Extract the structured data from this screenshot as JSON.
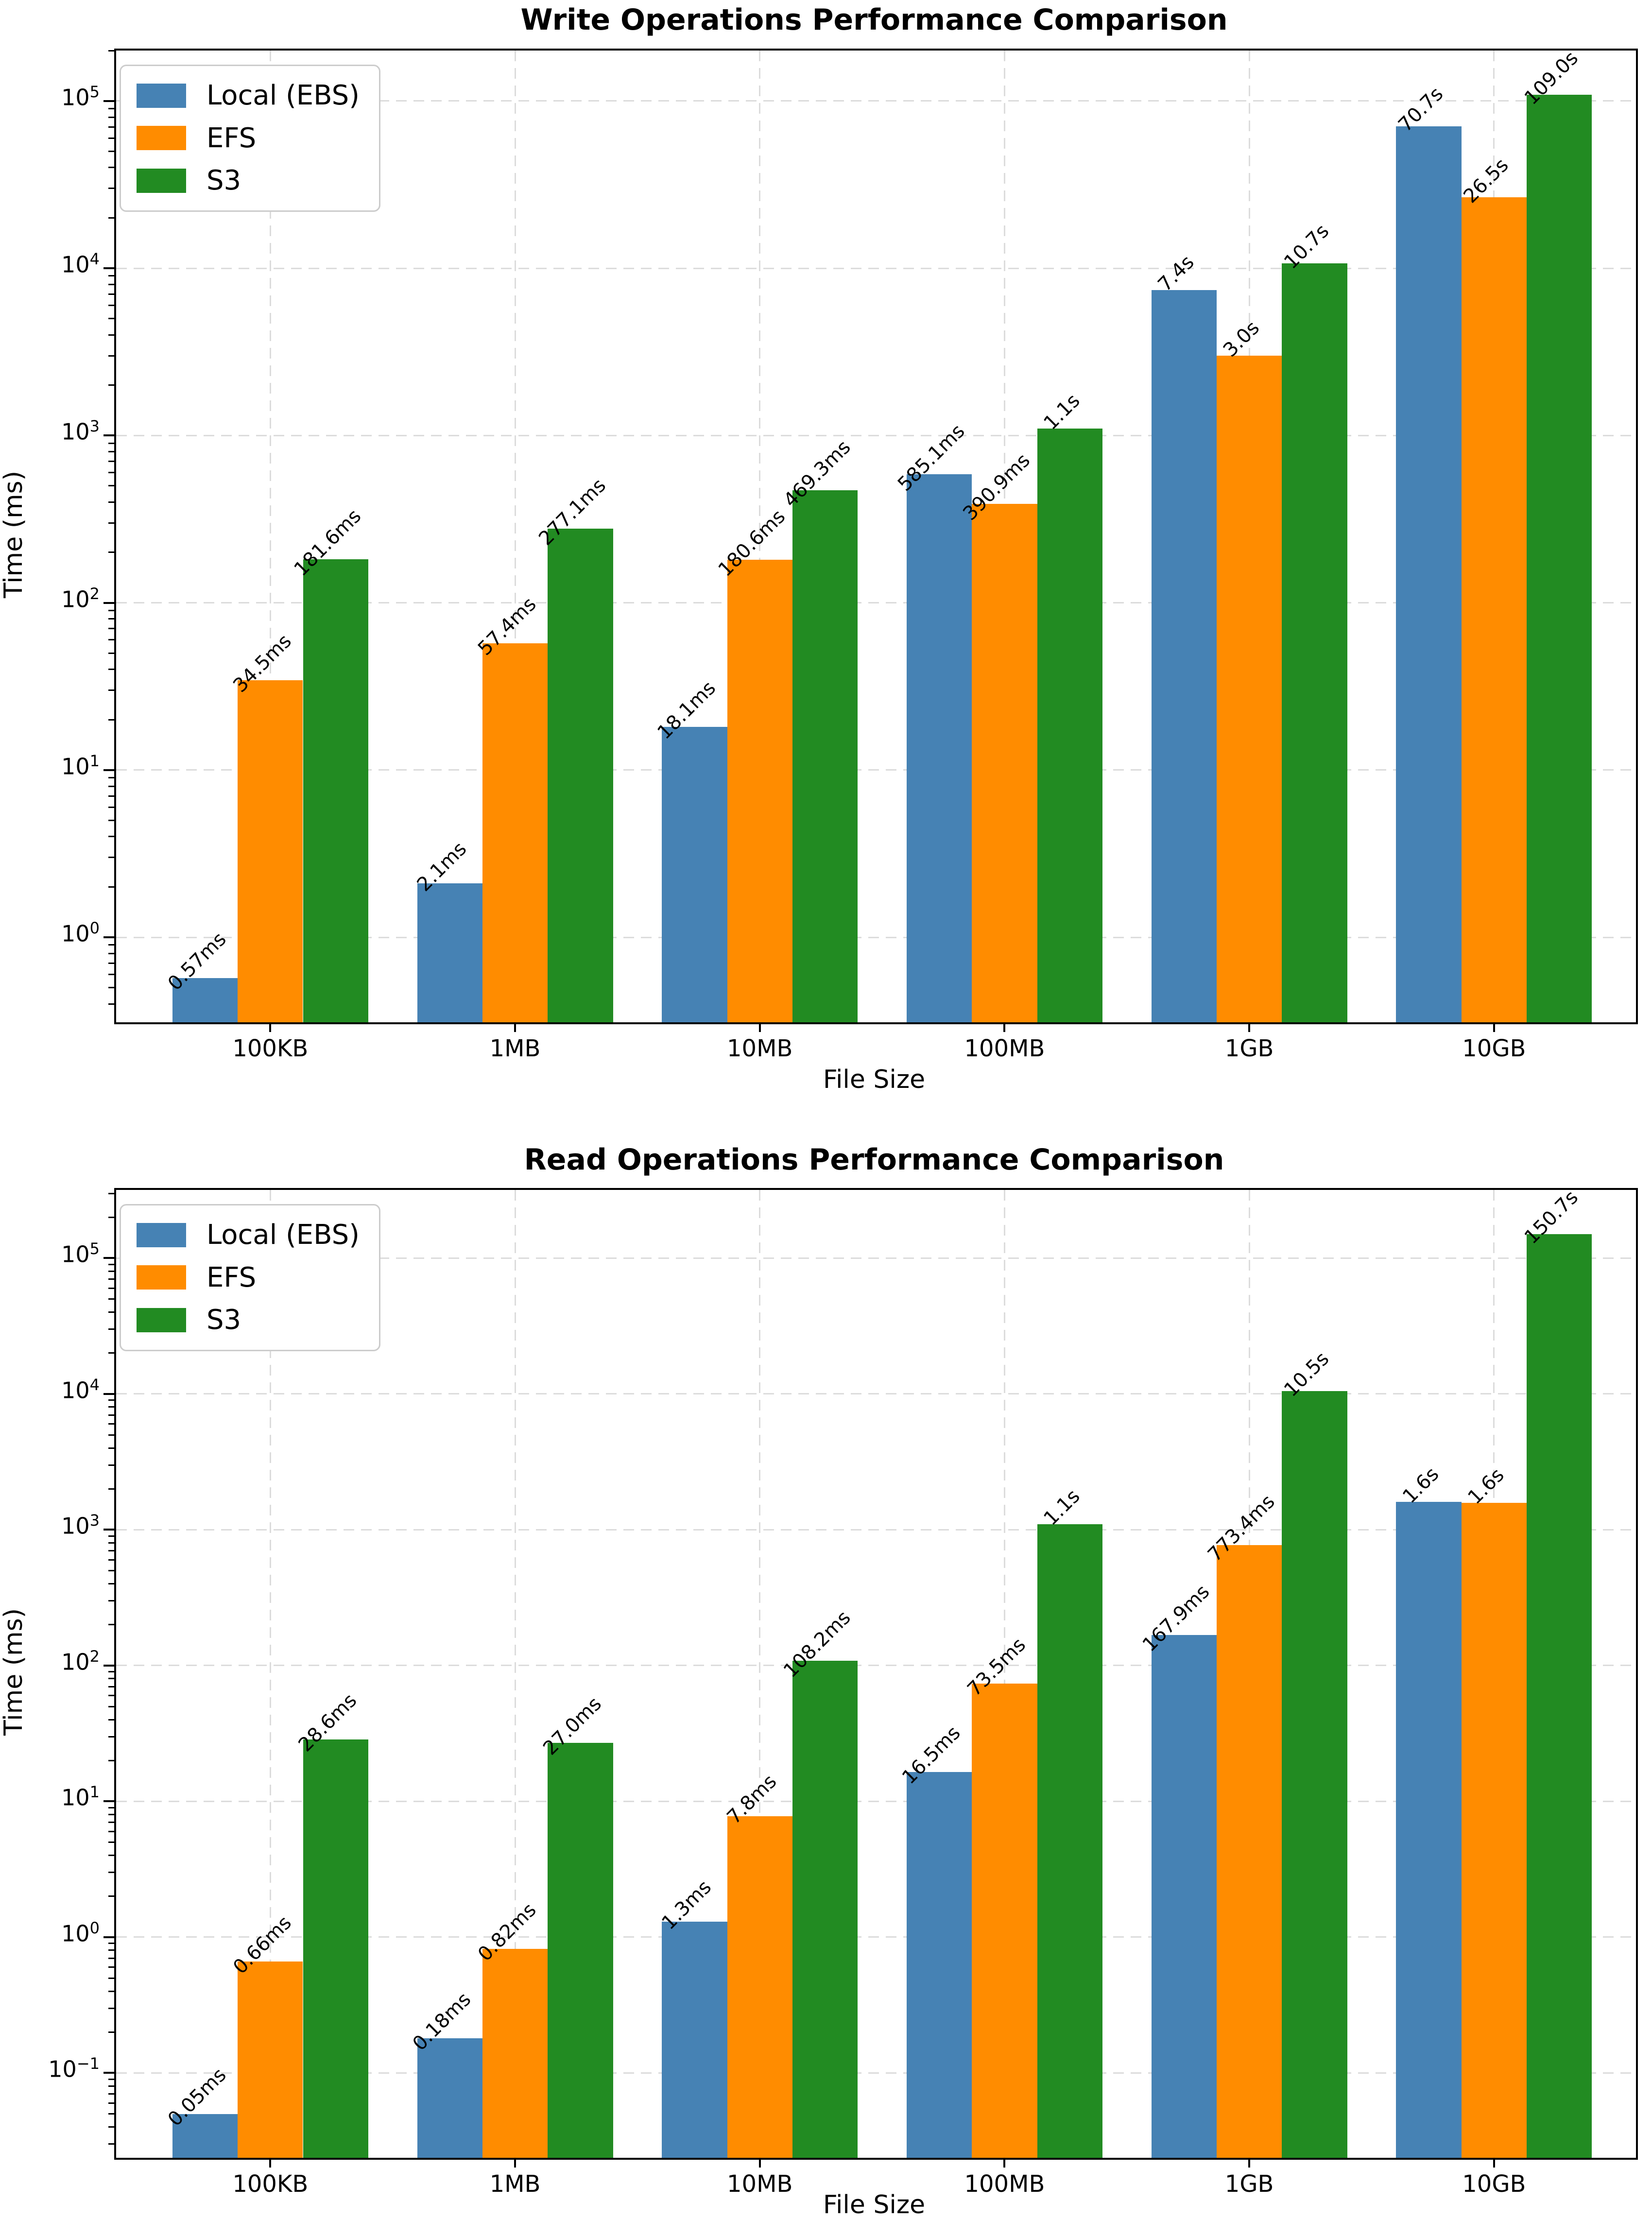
{
  "figure": {
    "background": "#ffffff",
    "grid": {
      "on": true,
      "style": "dashed",
      "color": "#dcdcdc"
    },
    "spine_color": "#000000"
  },
  "chart_data": [
    {
      "type": "bar",
      "id": "write",
      "title": "Write Operations Performance Comparison",
      "xlabel": "File Size",
      "ylabel": "Time (ms)",
      "yscale": "log",
      "ylim_log10": [
        -0.5082,
        5.3015
      ],
      "ytick_decades": [
        0,
        1,
        2,
        3,
        4,
        5
      ],
      "legend_position": "upper left",
      "categories": [
        "100KB",
        "1MB",
        "10MB",
        "100MB",
        "1GB",
        "10GB"
      ],
      "series": [
        {
          "name": "Local (EBS)",
          "color": "#4682B4",
          "values_ms": [
            0.57,
            2.1,
            18.1,
            585.1,
            7400,
            70700
          ],
          "labels": [
            "0.57ms",
            "2.1ms",
            "18.1ms",
            "585.1ms",
            "7.4s",
            "70.7s"
          ]
        },
        {
          "name": "EFS",
          "color": "#FF8C00",
          "values_ms": [
            34.5,
            57.4,
            180.6,
            390.9,
            3000,
            26500
          ],
          "labels": [
            "34.5ms",
            "57.4ms",
            "180.6ms",
            "390.9ms",
            "3.0s",
            "26.5s"
          ]
        },
        {
          "name": "S3",
          "color": "#228B22",
          "values_ms": [
            181.6,
            277.1,
            469.3,
            1100,
            10700,
            109000
          ],
          "labels": [
            "181.6ms",
            "277.1ms",
            "469.3ms",
            "1.1s",
            "10.7s",
            "109.0s"
          ]
        }
      ]
    },
    {
      "type": "bar",
      "id": "read",
      "title": "Read Operations Performance Comparison",
      "xlabel": "File Size",
      "ylabel": "Time (ms)",
      "yscale": "log",
      "ylim_log10": [
        -1.6247,
        5.5022
      ],
      "ytick_decades": [
        -1,
        0,
        1,
        2,
        3,
        4,
        5
      ],
      "legend_position": "upper left",
      "categories": [
        "100KB",
        "1MB",
        "10MB",
        "100MB",
        "1GB",
        "10GB"
      ],
      "series": [
        {
          "name": "Local (EBS)",
          "color": "#4682B4",
          "values_ms": [
            0.05,
            0.18,
            1.3,
            16.5,
            167.9,
            1600
          ],
          "labels": [
            "0.05ms",
            "0.18ms",
            "1.3ms",
            "16.5ms",
            "167.9ms",
            "1.6s"
          ]
        },
        {
          "name": "EFS",
          "color": "#FF8C00",
          "values_ms": [
            0.66,
            0.82,
            7.8,
            73.5,
            773.4,
            1575
          ],
          "labels": [
            "0.66ms",
            "0.82ms",
            "7.8ms",
            "73.5ms",
            "773.4ms",
            "1.6s"
          ]
        },
        {
          "name": "S3",
          "color": "#228B22",
          "values_ms": [
            28.6,
            27.0,
            108.2,
            1100,
            10500,
            150700
          ],
          "labels": [
            "28.6ms",
            "27.0ms",
            "108.2ms",
            "1.1s",
            "10.5s",
            "150.7s"
          ]
        }
      ]
    }
  ]
}
